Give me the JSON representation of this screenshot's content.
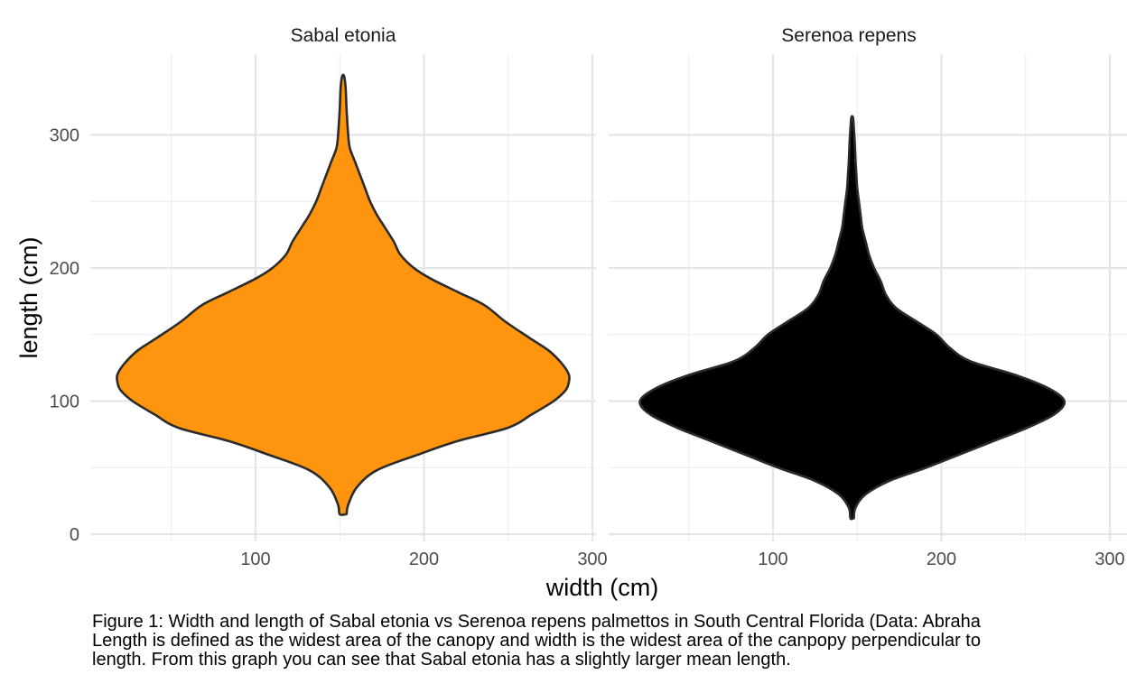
{
  "chart_data": {
    "type": "violin",
    "xlabel": "width (cm)",
    "ylabel": "length (cm)",
    "ylim": [
      0,
      350
    ],
    "yticks": [
      0,
      100,
      200,
      300
    ],
    "xlim": [
      0,
      300
    ],
    "xticks": [
      100,
      200,
      300
    ],
    "grid": true,
    "panels": [
      {
        "name": "Sabal etonia",
        "fill": "#FF940F",
        "outline": "#2b2b2b",
        "center_x": 152,
        "profile": [
          {
            "y": 15,
            "w": 2
          },
          {
            "y": 22,
            "w": 3
          },
          {
            "y": 35,
            "w": 8
          },
          {
            "y": 48,
            "w": 20
          },
          {
            "y": 60,
            "w": 45
          },
          {
            "y": 70,
            "w": 68
          },
          {
            "y": 80,
            "w": 98
          },
          {
            "y": 90,
            "w": 112
          },
          {
            "y": 100,
            "w": 125
          },
          {
            "y": 108,
            "w": 132
          },
          {
            "y": 114,
            "w": 134
          },
          {
            "y": 120,
            "w": 134
          },
          {
            "y": 128,
            "w": 130
          },
          {
            "y": 138,
            "w": 122
          },
          {
            "y": 148,
            "w": 110
          },
          {
            "y": 160,
            "w": 96
          },
          {
            "y": 172,
            "w": 84
          },
          {
            "y": 182,
            "w": 68
          },
          {
            "y": 192,
            "w": 52
          },
          {
            "y": 200,
            "w": 42
          },
          {
            "y": 210,
            "w": 34
          },
          {
            "y": 220,
            "w": 30
          },
          {
            "y": 232,
            "w": 24
          },
          {
            "y": 240,
            "w": 20
          },
          {
            "y": 250,
            "w": 16
          },
          {
            "y": 260,
            "w": 13
          },
          {
            "y": 270,
            "w": 10
          },
          {
            "y": 280,
            "w": 7
          },
          {
            "y": 290,
            "w": 4
          },
          {
            "y": 300,
            "w": 3
          },
          {
            "y": 320,
            "w": 2
          },
          {
            "y": 335,
            "w": 1.5
          },
          {
            "y": 344,
            "w": 0.6
          }
        ]
      },
      {
        "name": "Serenoa repens",
        "fill": "#000000",
        "outline": "#2b2b2b",
        "center_x": 147,
        "profile": [
          {
            "y": 12,
            "w": 1
          },
          {
            "y": 20,
            "w": 2
          },
          {
            "y": 30,
            "w": 8
          },
          {
            "y": 40,
            "w": 22
          },
          {
            "y": 50,
            "w": 44
          },
          {
            "y": 60,
            "w": 64
          },
          {
            "y": 70,
            "w": 84
          },
          {
            "y": 80,
            "w": 104
          },
          {
            "y": 90,
            "w": 120
          },
          {
            "y": 100,
            "w": 126
          },
          {
            "y": 110,
            "w": 116
          },
          {
            "y": 120,
            "w": 96
          },
          {
            "y": 130,
            "w": 70
          },
          {
            "y": 140,
            "w": 58
          },
          {
            "y": 150,
            "w": 50
          },
          {
            "y": 160,
            "w": 38
          },
          {
            "y": 170,
            "w": 26
          },
          {
            "y": 180,
            "w": 20
          },
          {
            "y": 190,
            "w": 17
          },
          {
            "y": 200,
            "w": 13
          },
          {
            "y": 210,
            "w": 10
          },
          {
            "y": 220,
            "w": 8
          },
          {
            "y": 230,
            "w": 6
          },
          {
            "y": 240,
            "w": 5
          },
          {
            "y": 250,
            "w": 4
          },
          {
            "y": 260,
            "w": 3
          },
          {
            "y": 270,
            "w": 2.5
          },
          {
            "y": 280,
            "w": 2
          },
          {
            "y": 295,
            "w": 1.5
          },
          {
            "y": 305,
            "w": 1
          },
          {
            "y": 313,
            "w": 0.5
          }
        ]
      }
    ]
  },
  "caption": {
    "lines": [
      "Figure 1: Width and length of Sabal etonia vs Serenoa repens palmettos in South Central Florida (Data: Abraha",
      "Length is defined as the widest area of the canopy and width is the widest area of the canpopy perpendicular to",
      "length. From this graph you can see that Sabal etonia has a slightly larger mean length."
    ]
  }
}
